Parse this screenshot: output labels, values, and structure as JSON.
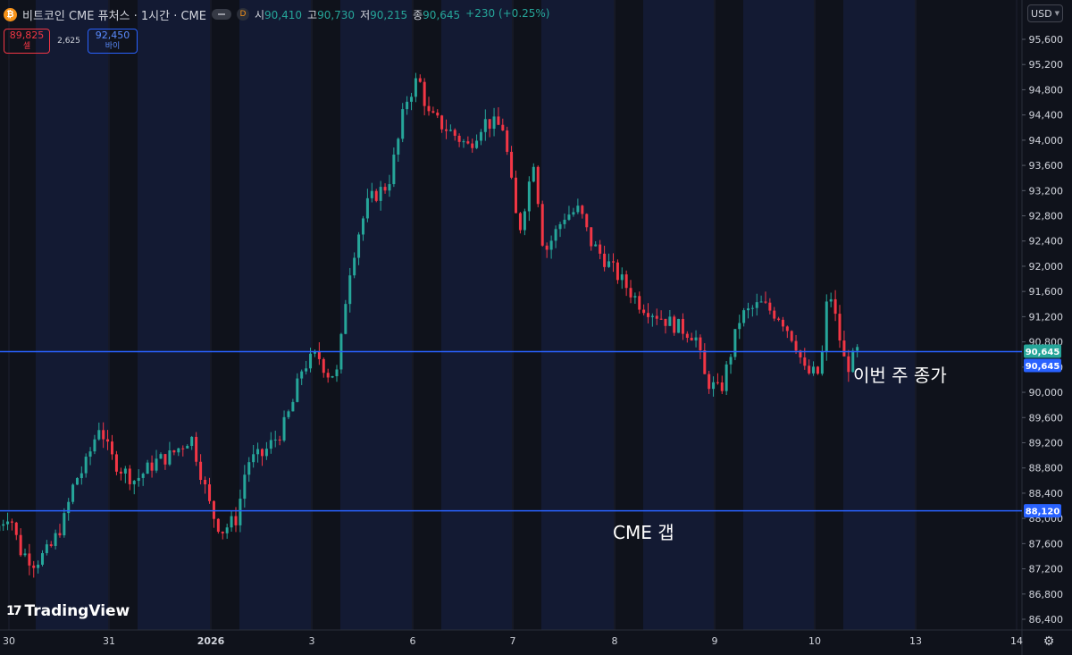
{
  "header": {
    "symbol_icon": "bitcoin-icon",
    "symbol": "비트코인 CME 퓨처스 · 1시간 · CME",
    "badge": "D",
    "ohlc": [
      {
        "k": "시",
        "v": "90,410"
      },
      {
        "k": "고",
        "v": "90,730"
      },
      {
        "k": "저",
        "v": "90,215"
      },
      {
        "k": "종",
        "v": "90,645"
      }
    ],
    "change": "+230 (+0.25%)"
  },
  "trade": {
    "sell_price": "89,825",
    "sell_label": "셀",
    "spread": "2,625",
    "buy_price": "92,450",
    "buy_label": "바이"
  },
  "currency": "USD",
  "logo": "TradingView",
  "colors": {
    "up": "#26a69a",
    "down": "#f23645",
    "line": "#2962ff",
    "session_bg": "#131a33",
    "bg": "#0f121b"
  },
  "chart_data": {
    "type": "candlestick",
    "ylim": [
      86200,
      96000
    ],
    "yticks": [
      "95,600",
      "95,200",
      "94,800",
      "94,400",
      "94,000",
      "93,600",
      "93,200",
      "92,800",
      "92,400",
      "92,000",
      "91,600",
      "91,200",
      "90,800",
      "90,400",
      "90,000",
      "89,600",
      "89,200",
      "88,800",
      "88,400",
      "88,000",
      "87,600",
      "87,200",
      "86,800",
      "86,400"
    ],
    "xticks": [
      {
        "label": "30",
        "t": 0
      },
      {
        "label": "31",
        "t": 1
      },
      {
        "label": "2026",
        "t": 2
      },
      {
        "label": "3",
        "t": 3
      },
      {
        "label": "6",
        "t": 4
      },
      {
        "label": "7",
        "t": 5
      },
      {
        "label": "8",
        "t": 6
      },
      {
        "label": "9",
        "t": 7
      },
      {
        "label": "10",
        "t": 8
      },
      {
        "label": "13",
        "t": 9
      },
      {
        "label": "14",
        "t": 10
      }
    ],
    "hlines": [
      {
        "value": 90645,
        "label": "90,645",
        "label2": "90,645"
      },
      {
        "value": 88120,
        "label": "88,120"
      }
    ],
    "annotations": [
      {
        "text": "이번 주 종가",
        "at_value": 90645
      },
      {
        "text": "CME 갭",
        "at_value": 88120
      }
    ],
    "anchors": [
      [
        -0.1,
        87800
      ],
      [
        0.05,
        88100
      ],
      [
        0.15,
        87500
      ],
      [
        0.3,
        87300
      ],
      [
        0.45,
        87500
      ],
      [
        0.6,
        88000
      ],
      [
        0.7,
        88600
      ],
      [
        0.8,
        88800
      ],
      [
        0.95,
        89500
      ],
      [
        1.05,
        89000
      ],
      [
        1.15,
        88800
      ],
      [
        1.3,
        88600
      ],
      [
        1.5,
        88900
      ],
      [
        1.65,
        89000
      ],
      [
        1.85,
        89300
      ],
      [
        1.95,
        88700
      ],
      [
        2.05,
        88100
      ],
      [
        2.15,
        87800
      ],
      [
        2.3,
        88000
      ],
      [
        2.4,
        88900
      ],
      [
        2.55,
        89000
      ],
      [
        2.75,
        89400
      ],
      [
        2.85,
        89800
      ],
      [
        2.95,
        90400
      ],
      [
        3.1,
        90600
      ],
      [
        3.2,
        90300
      ],
      [
        3.3,
        90300
      ],
      [
        3.4,
        91800
      ],
      [
        3.5,
        92500
      ],
      [
        3.6,
        93000
      ],
      [
        3.65,
        93100
      ],
      [
        3.8,
        93300
      ],
      [
        3.9,
        94000
      ],
      [
        3.97,
        94600
      ],
      [
        4.1,
        95000
      ],
      [
        4.2,
        94400
      ],
      [
        4.45,
        94100
      ],
      [
        4.6,
        93900
      ],
      [
        4.75,
        94300
      ],
      [
        4.95,
        94200
      ],
      [
        5.1,
        92500
      ],
      [
        5.25,
        93700
      ],
      [
        5.35,
        92200
      ],
      [
        5.55,
        92800
      ],
      [
        5.7,
        92900
      ],
      [
        5.8,
        92400
      ],
      [
        5.95,
        92100
      ],
      [
        6.1,
        91800
      ],
      [
        6.3,
        91400
      ],
      [
        6.6,
        91100
      ],
      [
        6.85,
        90900
      ],
      [
        6.95,
        90200
      ],
      [
        7.1,
        90000
      ],
      [
        7.3,
        91200
      ],
      [
        7.5,
        91400
      ],
      [
        7.7,
        91200
      ],
      [
        7.85,
        90800
      ],
      [
        7.95,
        90300
      ],
      [
        8.1,
        90300
      ],
      [
        8.18,
        91700
      ],
      [
        8.35,
        90400
      ],
      [
        8.4,
        90450
      ],
      [
        8.45,
        90645
      ]
    ],
    "seed": 7,
    "candles_per_day": 23
  }
}
